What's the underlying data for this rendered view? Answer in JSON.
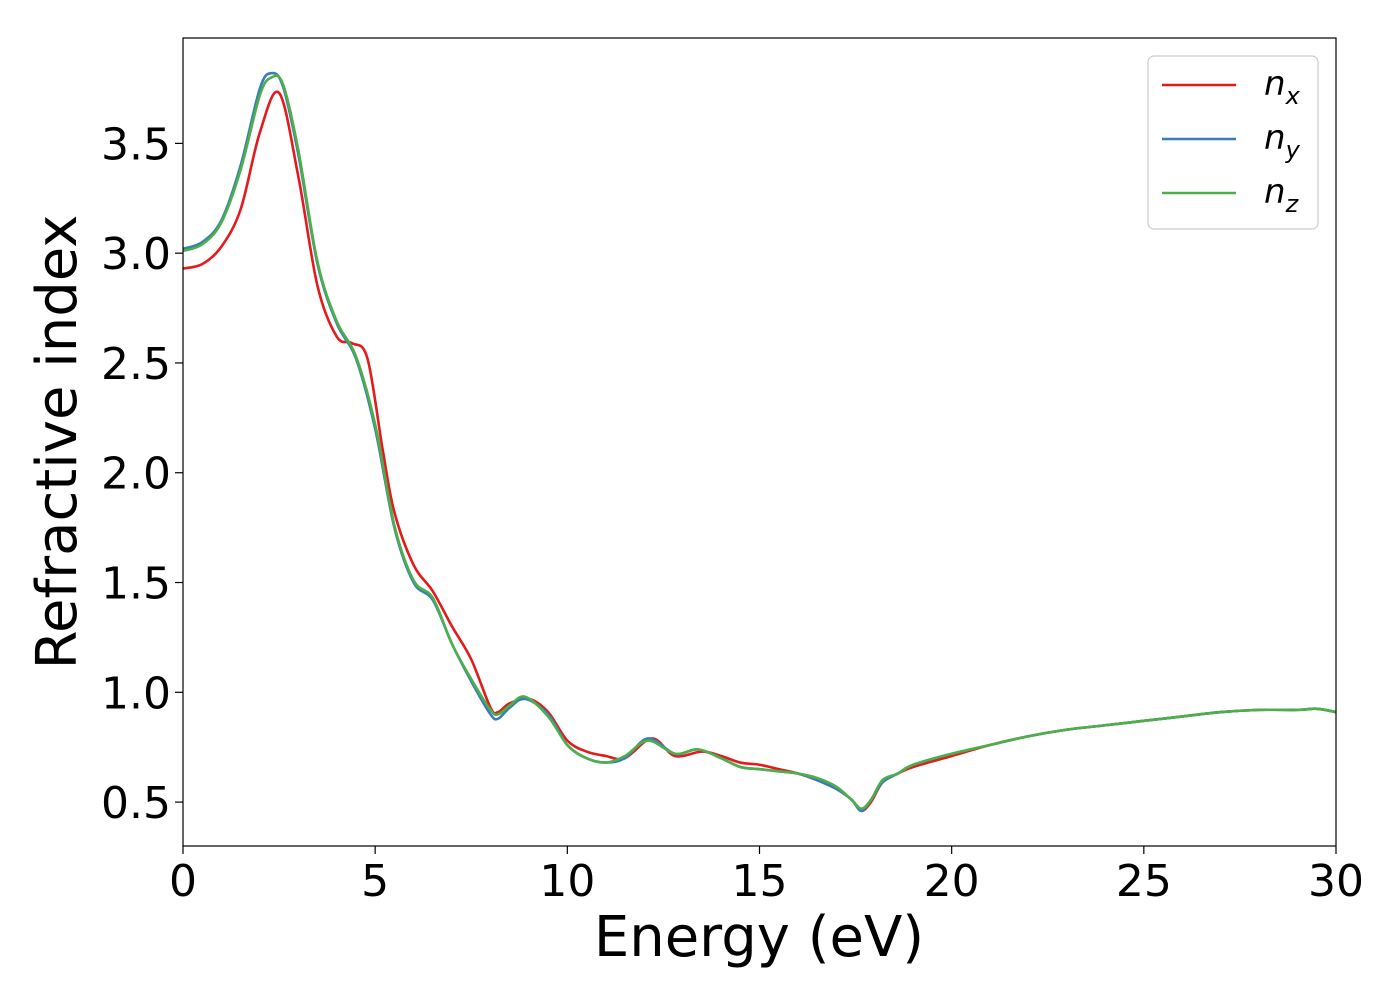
{
  "chart_data": {
    "type": "line",
    "xlabel": "Energy (eV)",
    "ylabel": "Refractive index",
    "xlim": [
      0,
      30
    ],
    "ylim": [
      0.3,
      3.98
    ],
    "xticks": [
      0,
      5,
      10,
      15,
      20,
      25,
      30
    ],
    "xtick_labels": [
      "0",
      "5",
      "10",
      "15",
      "20",
      "25",
      "30"
    ],
    "yticks": [
      0.5,
      1.0,
      1.5,
      2.0,
      2.5,
      3.0,
      3.5
    ],
    "ytick_labels": [
      "0.5",
      "1.0",
      "1.5",
      "2.0",
      "2.5",
      "3.0",
      "3.5"
    ],
    "grid": false,
    "legend_position": "top-right",
    "series": [
      {
        "name": "n_x",
        "label_main": "n",
        "label_sub": "x",
        "color": "#e41a1c",
        "x": [
          0,
          0.5,
          1.0,
          1.5,
          2.0,
          2.5,
          3.0,
          3.5,
          4.0,
          4.4,
          4.8,
          5.2,
          5.5,
          6.0,
          6.5,
          7.0,
          7.5,
          8.0,
          8.2,
          8.5,
          9.0,
          9.5,
          10.0,
          10.5,
          11.0,
          11.5,
          12.2,
          12.8,
          13.5,
          14.0,
          14.5,
          15.0,
          15.5,
          16.0,
          16.5,
          17.0,
          17.4,
          17.65,
          17.9,
          18.2,
          18.6,
          19.0,
          20.0,
          21.0,
          22.0,
          23.0,
          24.0,
          25.0,
          26.0,
          27.0,
          28.0,
          29.0,
          29.5,
          30.0
        ],
        "y": [
          2.93,
          2.95,
          3.03,
          3.2,
          3.55,
          3.73,
          3.35,
          2.85,
          2.62,
          2.59,
          2.52,
          2.1,
          1.82,
          1.58,
          1.46,
          1.3,
          1.15,
          0.93,
          0.91,
          0.95,
          0.97,
          0.91,
          0.78,
          0.73,
          0.71,
          0.7,
          0.79,
          0.71,
          0.73,
          0.71,
          0.68,
          0.67,
          0.65,
          0.63,
          0.6,
          0.56,
          0.51,
          0.46,
          0.5,
          0.59,
          0.63,
          0.66,
          0.71,
          0.76,
          0.8,
          0.83,
          0.85,
          0.87,
          0.89,
          0.91,
          0.92,
          0.92,
          0.925,
          0.91
        ]
      },
      {
        "name": "n_y",
        "label_main": "n",
        "label_sub": "y",
        "color": "#377eb8",
        "x": [
          0,
          0.5,
          1.0,
          1.5,
          2.0,
          2.3,
          2.6,
          3.0,
          3.5,
          4.0,
          4.5,
          5.0,
          5.5,
          6.0,
          6.5,
          7.0,
          7.5,
          8.0,
          8.2,
          8.5,
          8.9,
          9.5,
          10.0,
          10.5,
          11.0,
          11.5,
          12.1,
          12.8,
          13.4,
          14.0,
          14.5,
          15.0,
          15.5,
          16.0,
          16.5,
          17.0,
          17.4,
          17.65,
          17.9,
          18.2,
          18.6,
          19.0,
          20.0,
          21.0,
          22.0,
          23.0,
          24.0,
          25.0,
          26.0,
          27.0,
          28.0,
          29.0,
          29.5,
          30.0
        ],
        "y": [
          3.02,
          3.05,
          3.15,
          3.4,
          3.75,
          3.82,
          3.76,
          3.45,
          2.95,
          2.68,
          2.52,
          2.2,
          1.75,
          1.5,
          1.42,
          1.22,
          1.05,
          0.9,
          0.88,
          0.93,
          0.97,
          0.9,
          0.76,
          0.7,
          0.68,
          0.7,
          0.79,
          0.72,
          0.74,
          0.7,
          0.66,
          0.65,
          0.64,
          0.63,
          0.6,
          0.56,
          0.51,
          0.46,
          0.51,
          0.59,
          0.63,
          0.67,
          0.72,
          0.76,
          0.8,
          0.83,
          0.85,
          0.87,
          0.89,
          0.91,
          0.92,
          0.92,
          0.925,
          0.91
        ]
      },
      {
        "name": "n_z",
        "label_main": "n",
        "label_sub": "z",
        "color": "#4daf4a",
        "x": [
          0,
          0.5,
          1.0,
          1.5,
          2.0,
          2.3,
          2.6,
          3.0,
          3.5,
          4.0,
          4.5,
          5.0,
          5.5,
          6.0,
          6.5,
          7.0,
          7.5,
          8.0,
          8.2,
          8.5,
          8.9,
          9.5,
          10.0,
          10.5,
          11.0,
          11.5,
          12.1,
          12.8,
          13.4,
          14.0,
          14.5,
          15.0,
          15.5,
          16.0,
          16.5,
          17.0,
          17.4,
          17.65,
          17.9,
          18.2,
          18.6,
          19.0,
          20.0,
          21.0,
          22.0,
          23.0,
          24.0,
          25.0,
          26.0,
          27.0,
          28.0,
          29.0,
          29.5,
          30.0
        ],
        "y": [
          3.01,
          3.04,
          3.14,
          3.38,
          3.72,
          3.8,
          3.77,
          3.47,
          2.96,
          2.69,
          2.53,
          2.22,
          1.76,
          1.51,
          1.43,
          1.22,
          1.06,
          0.92,
          0.9,
          0.94,
          0.98,
          0.89,
          0.76,
          0.7,
          0.68,
          0.71,
          0.78,
          0.72,
          0.74,
          0.7,
          0.66,
          0.65,
          0.64,
          0.63,
          0.61,
          0.57,
          0.51,
          0.47,
          0.51,
          0.6,
          0.63,
          0.67,
          0.72,
          0.76,
          0.8,
          0.83,
          0.85,
          0.87,
          0.89,
          0.91,
          0.92,
          0.92,
          0.925,
          0.91
        ]
      }
    ]
  }
}
